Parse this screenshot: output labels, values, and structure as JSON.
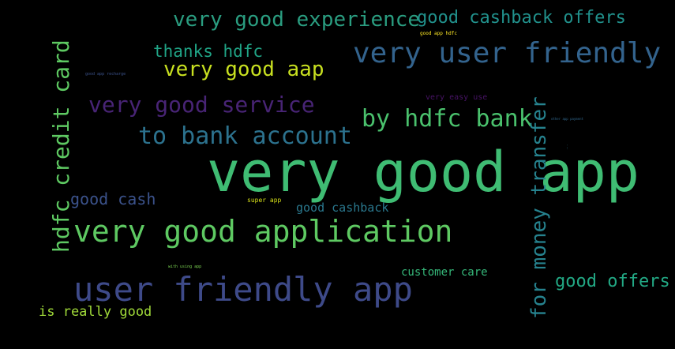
{
  "words": [
    {
      "id": "very-good-app",
      "text": "very good app",
      "color": "#3fbc73"
    },
    {
      "id": "very-good-application",
      "text": "very good application",
      "color": "#5ec962"
    },
    {
      "id": "user-friendly-app",
      "text": "user friendly app",
      "color": "#3e4a89"
    },
    {
      "id": "very-user-friendly",
      "text": "very user friendly",
      "color": "#33638d"
    },
    {
      "id": "very-good-experience",
      "text": "very good experience",
      "color": "#2a9d80"
    },
    {
      "id": "good-cashback-offers",
      "text": "good cashback offers",
      "color": "#21918c"
    },
    {
      "id": "very-good-service",
      "text": "very good service",
      "color": "#482475"
    },
    {
      "id": "by-hdfc-bank",
      "text": "by hdfc bank",
      "color": "#4ac16d"
    },
    {
      "id": "to-bank-account",
      "text": "to bank account",
      "color": "#2c728e"
    },
    {
      "id": "very-good-aap",
      "text": "very good aap",
      "color": "#c8e020"
    },
    {
      "id": "thanks-hdfc",
      "text": "thanks hdfc",
      "color": "#20a486"
    },
    {
      "id": "hdfc-credit-card",
      "text": "hdfc credit card",
      "color": "#5ec962"
    },
    {
      "id": "for-money-transfer",
      "text": "for money transfer",
      "color": "#26828e"
    },
    {
      "id": "good-cash",
      "text": "good cash",
      "color": "#3b528b"
    },
    {
      "id": "good-cashback",
      "text": "good cashback",
      "color": "#2a788e"
    },
    {
      "id": "super-app",
      "text": "super app",
      "color": "#d8e219"
    },
    {
      "id": "good-offers",
      "text": "good offers",
      "color": "#22a884"
    },
    {
      "id": "customer-care",
      "text": "customer care",
      "color": "#35b779"
    },
    {
      "id": "is-really-good",
      "text": "is really good",
      "color": "#a0da39"
    },
    {
      "id": "very-easy-use",
      "text": "very easy use",
      "color": "#471365"
    },
    {
      "id": "good-app-hdfc",
      "text": "good app hdfc",
      "color": "#fde725"
    },
    {
      "id": "good-app-recharge",
      "text": "good app recharge",
      "color": "#3b528b"
    },
    {
      "id": "with-using-app",
      "text": "with using app",
      "color": "#7ad151"
    },
    {
      "id": "other-app-payment",
      "text": "other app payment",
      "color": "#31688e"
    },
    {
      "id": "tiny-vertical",
      "text": "...",
      "color": "#2c728e"
    }
  ]
}
